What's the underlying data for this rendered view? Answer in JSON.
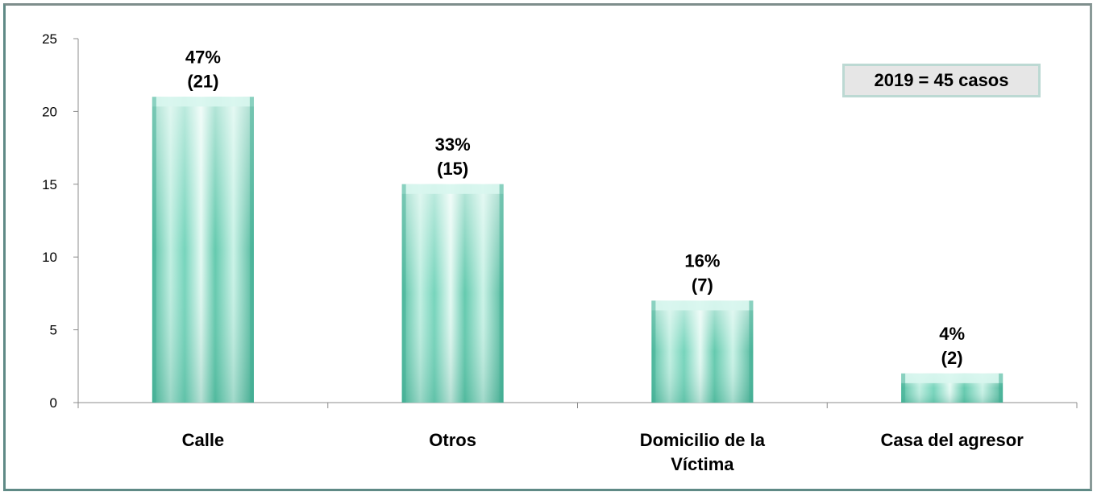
{
  "chart_data": {
    "type": "bar",
    "categories": [
      [
        "Calle"
      ],
      [
        "Otros"
      ],
      [
        "Domicilio de la",
        "Víctima"
      ],
      [
        "Casa del agresor"
      ]
    ],
    "values": [
      21,
      15,
      7,
      2
    ],
    "data_labels": [
      [
        "47%",
        "(21)"
      ],
      [
        "33%",
        "(15)"
      ],
      [
        "16%",
        "(7)"
      ],
      [
        "4%",
        "(2)"
      ]
    ],
    "y_ticks": [
      0,
      5,
      10,
      15,
      20,
      25
    ],
    "ylim": [
      0,
      25
    ],
    "grid": false,
    "annotation": "2019 = 45 casos",
    "colors": {
      "bar_light": "#d8f6ee",
      "bar_mid": "#7fdcc4",
      "bar_dark": "#3fae93",
      "axis": "#8c8c8c"
    }
  }
}
